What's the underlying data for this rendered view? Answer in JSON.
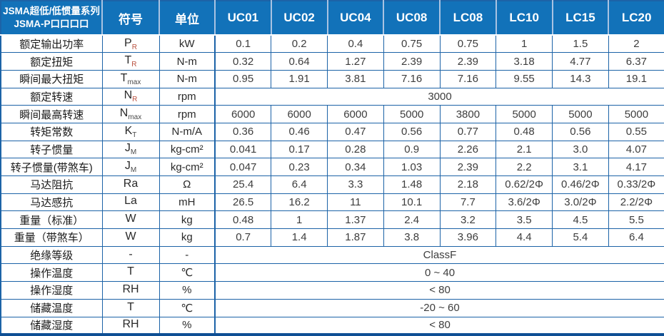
{
  "header": {
    "title_line1": "JSMA超低/低惯量系列",
    "title_line2": "JSMA-P口口口口",
    "symbol_col": "符号",
    "unit_col": "单位",
    "models": [
      "UC01",
      "UC02",
      "UC04",
      "UC08",
      "LC08",
      "LC10",
      "LC15",
      "LC20"
    ]
  },
  "rows": [
    {
      "label": "额定输出功率",
      "sym": "P",
      "sub": "R",
      "sub_red": true,
      "unit": "kW",
      "values": [
        "0.1",
        "0.2",
        "0.4",
        "0.75",
        "0.75",
        "1",
        "1.5",
        "2"
      ]
    },
    {
      "label": "额定扭矩",
      "sym": "T",
      "sub": "R",
      "sub_red": true,
      "unit": "N-m",
      "values": [
        "0.32",
        "0.64",
        "1.27",
        "2.39",
        "2.39",
        "3.18",
        "4.77",
        "6.37"
      ]
    },
    {
      "label": "瞬间最大扭矩",
      "sym": "T",
      "sub": "max",
      "sub_red": false,
      "unit": "N-m",
      "values": [
        "0.95",
        "1.91",
        "3.81",
        "7.16",
        "7.16",
        "9.55",
        "14.3",
        "19.1"
      ]
    },
    {
      "label": "额定转速",
      "sym": "N",
      "sub": "R",
      "sub_red": true,
      "unit": "rpm",
      "merged": "3000"
    },
    {
      "label": "瞬间最高转速",
      "sym": "N",
      "sub": "max",
      "sub_red": false,
      "unit": "rpm",
      "values": [
        "6000",
        "6000",
        "6000",
        "5000",
        "3800",
        "5000",
        "5000",
        "5000"
      ]
    },
    {
      "label": "转矩常数",
      "sym": "K",
      "sub": "T",
      "sub_red": false,
      "unit": "N-m/A",
      "values": [
        "0.36",
        "0.46",
        "0.47",
        "0.56",
        "0.77",
        "0.48",
        "0.56",
        "0.55"
      ]
    },
    {
      "label": "转子惯量",
      "sym": "J",
      "sub": "M",
      "sub_red": false,
      "unit": "kg-cm²",
      "values": [
        "0.041",
        "0.17",
        "0.28",
        "0.9",
        "2.26",
        "2.1",
        "3.0",
        "4.07"
      ]
    },
    {
      "label": "转子惯量(带煞车)",
      "sym": "J",
      "sub": "M",
      "sub_red": false,
      "unit": "kg-cm²",
      "values": [
        "0.047",
        "0.23",
        "0.34",
        "1.03",
        "2.39",
        "2.2",
        "3.1",
        "4.17"
      ]
    },
    {
      "label": "马达阻抗",
      "sym": "Ra",
      "sub": "",
      "sub_red": false,
      "unit": "Ω",
      "values": [
        "25.4",
        "6.4",
        "3.3",
        "1.48",
        "2.18",
        "0.62/2Φ",
        "0.46/2Φ",
        "0.33/2Φ"
      ]
    },
    {
      "label": "马达感抗",
      "sym": "La",
      "sub": "",
      "sub_red": false,
      "unit": "mH",
      "values": [
        "26.5",
        "16.2",
        "11",
        "10.1",
        "7.7",
        "3.6/2Φ",
        "3.0/2Φ",
        "2.2/2Φ"
      ]
    },
    {
      "label": "重量（标准）",
      "sym": "W",
      "sub": "",
      "sub_red": false,
      "unit": "kg",
      "values": [
        "0.48",
        "1",
        "1.37",
        "2.4",
        "3.2",
        "3.5",
        "4.5",
        "5.5"
      ]
    },
    {
      "label": "重量（带煞车）",
      "sym": "W",
      "sub": "",
      "sub_red": false,
      "unit": "kg",
      "values": [
        "0.7",
        "1.4",
        "1.87",
        "3.8",
        "3.96",
        "4.4",
        "5.4",
        "6.4"
      ]
    },
    {
      "label": "绝缘等级",
      "sym": "-",
      "sub": "",
      "sub_red": false,
      "unit": "-",
      "merged": "ClassF"
    },
    {
      "label": "操作温度",
      "sym": "T",
      "sub": "",
      "sub_red": false,
      "unit": "℃",
      "merged": "0 ~ 40"
    },
    {
      "label": "操作湿度",
      "sym": "RH",
      "sub": "",
      "sub_red": false,
      "unit": "%",
      "merged": "< 80"
    },
    {
      "label": "储藏温度",
      "sym": "T",
      "sub": "",
      "sub_red": false,
      "unit": "℃",
      "merged": "-20 ~ 60"
    },
    {
      "label": "储藏湿度",
      "sym": "RH",
      "sub": "",
      "sub_red": false,
      "unit": "%",
      "merged": "< 80"
    }
  ],
  "colors": {
    "header_bg": "#1272b9",
    "grid_line": "#1c63a7",
    "header_separator": "#a9c3e2",
    "bottom_border": "#0e4f94",
    "subscript_red": "#b9503e",
    "value_text": "#3d3d3d"
  }
}
